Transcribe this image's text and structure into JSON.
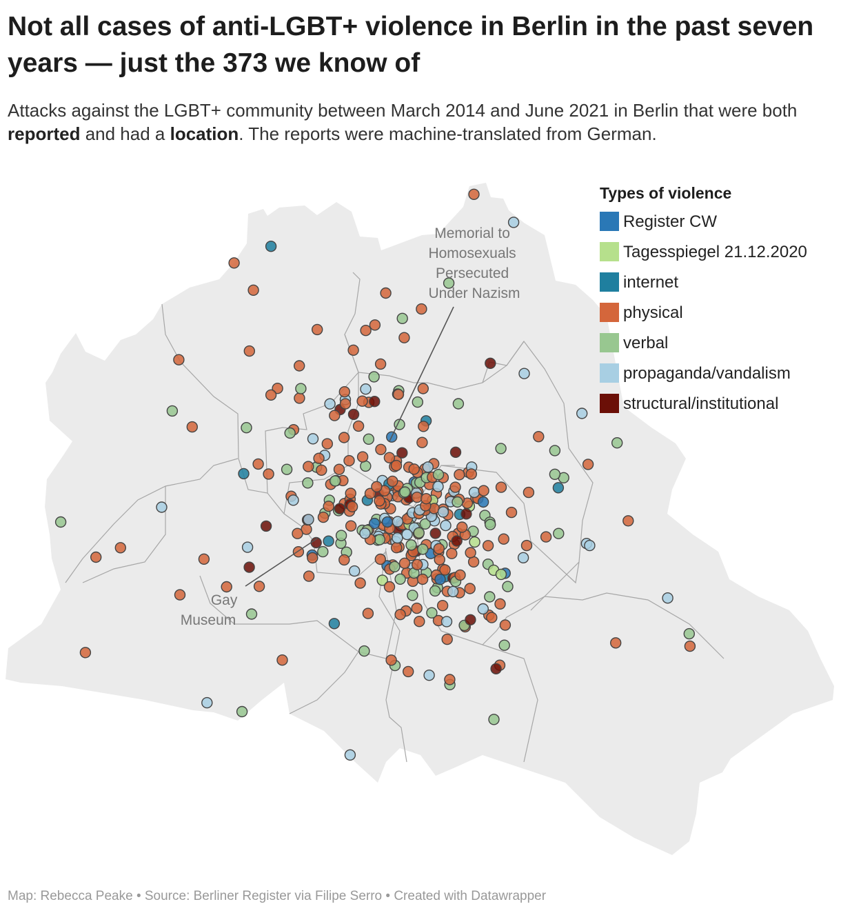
{
  "title": "Not all cases of anti-LGBT+ violence in Berlin in the past seven years — just the 373 we know of",
  "subtitle": {
    "part1": "Attacks against the LGBT+ community between March 2014 and June 2021 in Berlin that were both ",
    "bold1": "reported",
    "part2": " and had a ",
    "bold2": "location",
    "part3": ". The reports were machine-translated from German."
  },
  "legend": {
    "title": "Types of violence",
    "items": [
      {
        "key": "register",
        "label": "Register CW",
        "color": "#2a78b6"
      },
      {
        "key": "tagesspiegel",
        "label": "Tagesspiegel 21.12.2020",
        "color": "#b6e08c"
      },
      {
        "key": "internet",
        "label": "internet",
        "color": "#1f7f9f"
      },
      {
        "key": "physical",
        "label": "physical",
        "color": "#d4663b"
      },
      {
        "key": "verbal",
        "label": "verbal",
        "color": "#98c790"
      },
      {
        "key": "propaganda",
        "label": "propaganda/vandalism",
        "color": "#a8cfe3"
      },
      {
        "key": "structural",
        "label": "structural/institutional",
        "color": "#6b0f07"
      }
    ]
  },
  "annotations": {
    "memorial": [
      "Memorial to",
      "Homosexuals",
      "Persecuted",
      "Under Nazism"
    ],
    "museum": [
      "Gay",
      "Museum"
    ]
  },
  "footer": "Map: Rebecca Peake • Source: Berliner Register via Filipe Serro • Created with Datawrapper",
  "colors": {
    "land": "#ebebeb",
    "district_border": "#a6a6a6",
    "marker_stroke": "#444444"
  }
}
